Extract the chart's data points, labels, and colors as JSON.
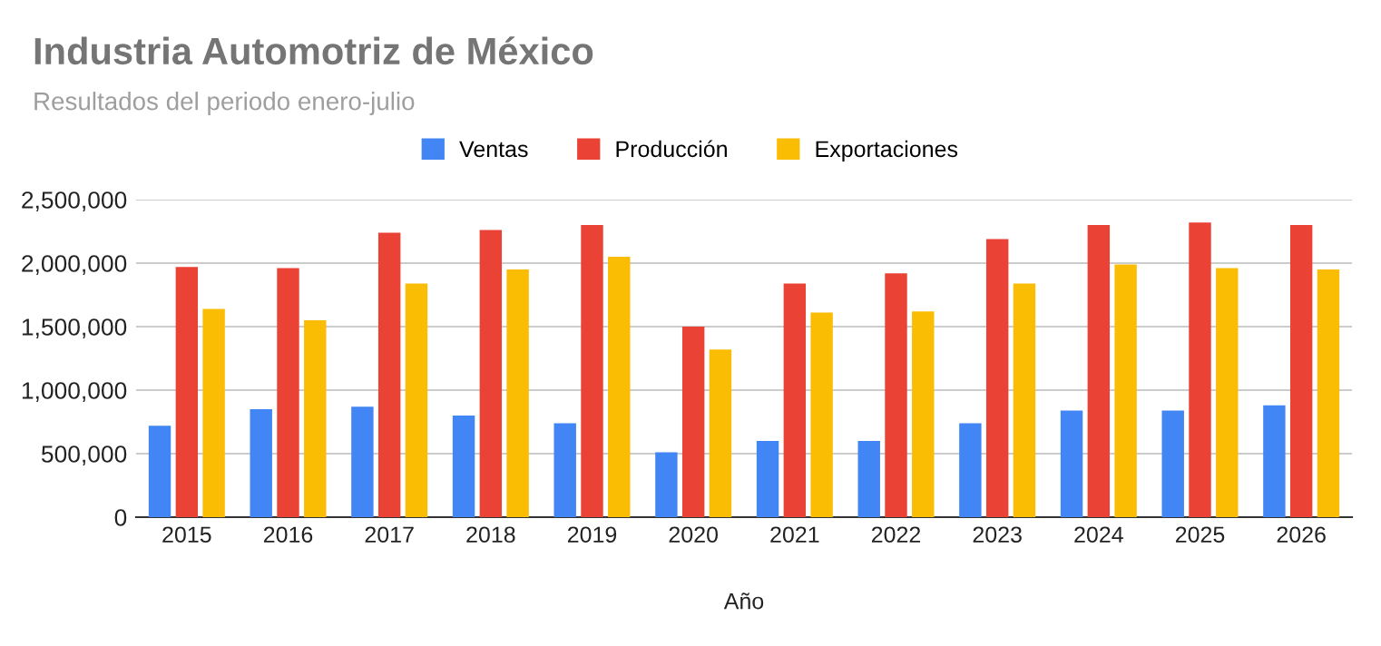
{
  "chart_data": {
    "type": "bar",
    "title": "Industria Automotriz de México",
    "subtitle": "Resultados del periodo enero-julio",
    "xlabel": "Año",
    "categories": [
      "2015",
      "2016",
      "2017",
      "2018",
      "2019",
      "2020",
      "2021",
      "2022",
      "2023",
      "2024",
      "2025",
      "2026"
    ],
    "series": [
      {
        "name": "Ventas",
        "color": "#4285f4",
        "values": [
          720000,
          850000,
          870000,
          800000,
          740000,
          510000,
          600000,
          600000,
          740000,
          840000,
          840000,
          880000
        ]
      },
      {
        "name": "Producción",
        "color": "#ea4335",
        "values": [
          1970000,
          1960000,
          2240000,
          2260000,
          2300000,
          1500000,
          1840000,
          1920000,
          2190000,
          2300000,
          2320000,
          2300000
        ]
      },
      {
        "name": "Exportaciones",
        "color": "#fbbc04",
        "values": [
          1640000,
          1550000,
          1840000,
          1950000,
          2050000,
          1320000,
          1610000,
          1620000,
          1840000,
          1990000,
          1960000,
          1950000
        ]
      }
    ],
    "ylim": [
      0,
      2500000
    ],
    "yticks": [
      {
        "value": 0,
        "label": "0"
      },
      {
        "value": 500000,
        "label": "500,000"
      },
      {
        "value": 1000000,
        "label": "1,000,000"
      },
      {
        "value": 1500000,
        "label": "1,500,000"
      },
      {
        "value": 2000000,
        "label": "2,000,000"
      },
      {
        "value": 2500000,
        "label": "2,500,000"
      }
    ],
    "grid": "y",
    "legend": "top"
  }
}
